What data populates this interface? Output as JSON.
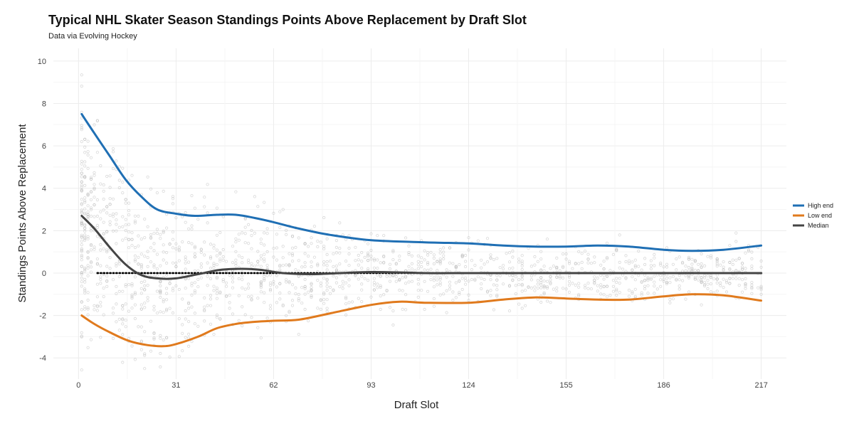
{
  "chart_data": {
    "type": "scatter",
    "title": "Typical NHL Skater Season Standings Points Above Replacement by Draft Slot",
    "subtitle": "Data via Evolving Hockey",
    "xlabel": "Draft Slot",
    "ylabel": "Standings Points Above Replacement",
    "xlim": [
      -8,
      225
    ],
    "ylim": [
      -5,
      10.6
    ],
    "x_ticks": [
      0,
      31,
      62,
      93,
      124,
      155,
      186,
      217
    ],
    "y_ticks": [
      -4,
      -2,
      0,
      2,
      4,
      6,
      8,
      10
    ],
    "grid": true,
    "legend_position": "right",
    "point_color": "#aaaaaa",
    "scatter_points_note_omitted": true,
    "series": [
      {
        "name": "High end",
        "color": "#1f6fb4",
        "x": [
          1,
          5,
          10,
          15,
          20,
          25,
          31,
          37,
          44,
          50,
          56,
          62,
          70,
          80,
          93,
          110,
          124,
          135,
          145,
          155,
          165,
          175,
          186,
          195,
          205,
          217
        ],
        "values": [
          7.5,
          6.6,
          5.5,
          4.4,
          3.6,
          3.0,
          2.8,
          2.7,
          2.75,
          2.75,
          2.6,
          2.4,
          2.1,
          1.8,
          1.55,
          1.45,
          1.4,
          1.3,
          1.25,
          1.25,
          1.3,
          1.25,
          1.1,
          1.05,
          1.1,
          1.3
        ]
      },
      {
        "name": "Low end",
        "color": "#e07a1d",
        "x": [
          1,
          5,
          10,
          16,
          22,
          27,
          31,
          38,
          44,
          50,
          56,
          62,
          70,
          80,
          93,
          102,
          110,
          124,
          135,
          145,
          155,
          165,
          175,
          186,
          195,
          205,
          217
        ],
        "values": [
          -2.0,
          -2.4,
          -2.8,
          -3.2,
          -3.4,
          -3.45,
          -3.35,
          -3.0,
          -2.6,
          -2.4,
          -2.3,
          -2.25,
          -2.2,
          -1.9,
          -1.5,
          -1.35,
          -1.4,
          -1.4,
          -1.25,
          -1.15,
          -1.2,
          -1.25,
          -1.25,
          -1.1,
          -1.0,
          -1.05,
          -1.3
        ]
      },
      {
        "name": "Median",
        "color": "#444444",
        "x": [
          1,
          5,
          10,
          15,
          20,
          25,
          31,
          38,
          45,
          52,
          58,
          65,
          75,
          93,
          110,
          124,
          140,
          155,
          170,
          186,
          200,
          217
        ],
        "values": [
          2.7,
          2.1,
          1.2,
          0.4,
          -0.1,
          -0.25,
          -0.25,
          -0.05,
          0.15,
          0.2,
          0.15,
          0.0,
          -0.05,
          0.05,
          0.0,
          0.0,
          0.0,
          0.0,
          0.0,
          0.0,
          0.0,
          0.0
        ]
      }
    ],
    "reference_line": {
      "y": 0,
      "x_range": [
        6,
        217
      ],
      "style": "dotted",
      "color": "#000000"
    }
  }
}
